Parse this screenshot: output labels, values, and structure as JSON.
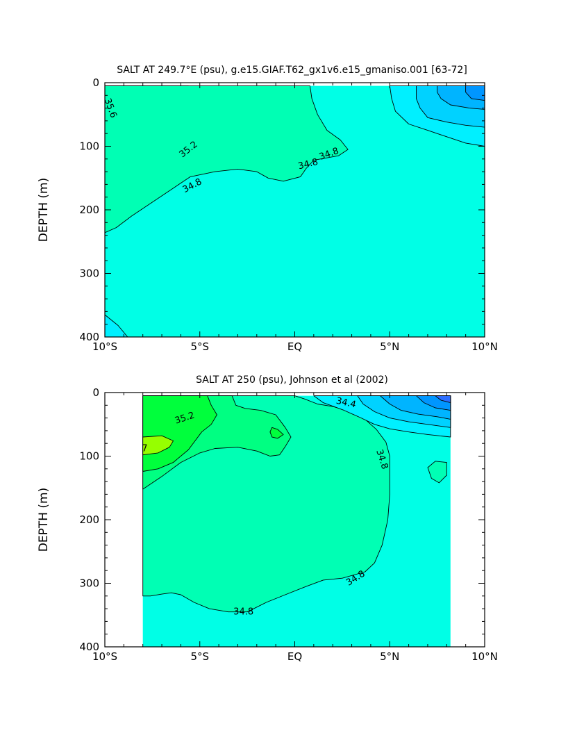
{
  "chart_data": [
    {
      "type": "contour",
      "title": "SALT AT 249.7°E (psu), g.e15.GIAF.T62_gx1v6.e15_gmaniso.001 ​[63-72​]",
      "ylabel": "DEPTH (m)",
      "xlabel": "",
      "xlim": [
        -10,
        10
      ],
      "ylim": [
        400,
        0
      ],
      "x_ticks": [
        -10,
        -5,
        0,
        5,
        10
      ],
      "x_tick_labels": [
        "10°S",
        "5°S",
        "EQ",
        "5°N",
        "10°N"
      ],
      "y_ticks": [
        0,
        100,
        200,
        300,
        400
      ],
      "y_tick_labels": [
        "0",
        "100",
        "200",
        "300",
        "400"
      ],
      "data_extent": {
        "x": [
          -10,
          10
        ],
        "depth": [
          5,
          400
        ]
      },
      "background_color": "#00ffe6",
      "contour_labels": [
        {
          "text": "35.6",
          "x": -9.7,
          "depth": 40,
          "angle": 70
        },
        {
          "text": "35.2",
          "x": -5.6,
          "depth": 105,
          "angle": -38
        },
        {
          "text": "34.8",
          "x": -5.4,
          "depth": 162,
          "angle": -28
        },
        {
          "text": "34.8",
          "x": 0.7,
          "depth": 128,
          "angle": -14
        },
        {
          "text": "34.8",
          "x": 1.8,
          "depth": 112,
          "angle": -20
        }
      ],
      "regions": [
        {
          "value": 35.8,
          "color": "#ffff00",
          "outline": [
            [
              -10,
              70
            ],
            [
              -9.6,
              80
            ],
            [
              -9.2,
              92
            ],
            [
              -9.0,
              105
            ],
            [
              -9.3,
              118
            ],
            [
              -9.8,
              126
            ],
            [
              -10,
              128
            ]
          ]
        },
        {
          "value": 35.6,
          "color": "#96ff00",
          "outline": [
            [
              -10,
              5
            ],
            [
              -9,
              5
            ],
            [
              -8.9,
              25
            ],
            [
              -8.7,
              45
            ],
            [
              -8.4,
              65
            ],
            [
              -8.2,
              85
            ],
            [
              -8.2,
              105
            ],
            [
              -8.5,
              125
            ],
            [
              -9.0,
              138
            ],
            [
              -9.6,
              146
            ],
            [
              -10,
              148
            ]
          ]
        },
        {
          "value": 35.4,
          "color": "#00ff3c",
          "outline": [
            [
              -10,
              5
            ],
            [
              -7.9,
              5
            ],
            [
              -7.8,
              25
            ],
            [
              -7.5,
              48
            ],
            [
              -6.9,
              68
            ],
            [
              -6.2,
              82
            ],
            [
              -4.6,
              76
            ],
            [
              -3.3,
              64
            ],
            [
              -2.3,
              58
            ],
            [
              -1.2,
              68
            ],
            [
              -0.7,
              85
            ],
            [
              -1.2,
              95
            ],
            [
              -2.5,
              97
            ],
            [
              -4,
              100
            ],
            [
              -5.2,
              110
            ],
            [
              -6.5,
              125
            ],
            [
              -7.8,
              140
            ],
            [
              -8.8,
              150
            ],
            [
              -10,
              160
            ]
          ]
        },
        {
          "value": 35.2,
          "color": "#00ff82",
          "outline": [
            [
              -10,
              5
            ],
            [
              -5.6,
              5
            ],
            [
              -5.6,
              25
            ],
            [
              -5.2,
              40
            ],
            [
              -4.5,
              50
            ],
            [
              -3.2,
              55
            ],
            [
              -1.8,
              57
            ],
            [
              -1.0,
              62
            ],
            [
              -0.6,
              70
            ],
            [
              -0.6,
              85
            ],
            [
              -1.2,
              93
            ],
            [
              -2.3,
              95
            ],
            [
              -3.5,
              96
            ],
            [
              -4.5,
              100
            ],
            [
              -5.5,
              110
            ],
            [
              -6.5,
              124
            ],
            [
              -7.5,
              138
            ],
            [
              -8.8,
              150
            ],
            [
              -9.5,
              158
            ],
            [
              -10,
              162
            ]
          ]
        },
        {
          "value": 35.0,
          "color": "#00ffb4",
          "outline": [
            [
              -10,
              5
            ],
            [
              0.8,
              5
            ],
            [
              0.9,
              25
            ],
            [
              1.2,
              50
            ],
            [
              1.7,
              75
            ],
            [
              2.4,
              90
            ],
            [
              2.8,
              105
            ],
            [
              2.3,
              115
            ],
            [
              1.0,
              122
            ],
            [
              0.6,
              135
            ],
            [
              0.3,
              148
            ],
            [
              -0.6,
              155
            ],
            [
              -1.4,
              150
            ],
            [
              -2,
              140
            ],
            [
              -3,
              136
            ],
            [
              -4.2,
              140
            ],
            [
              -5.5,
              148
            ],
            [
              -6.5,
              168
            ],
            [
              -7.6,
              190
            ],
            [
              -8.6,
              210
            ],
            [
              -9.4,
              228
            ],
            [
              -10,
              236
            ]
          ]
        },
        {
          "value": 34.4,
          "color": "#00f0ff",
          "outline": [
            [
              5,
              5
            ],
            [
              10,
              5
            ],
            [
              10,
              100
            ],
            [
              9,
              95
            ],
            [
              8,
              85
            ],
            [
              7,
              75
            ],
            [
              6,
              65
            ],
            [
              5.3,
              45
            ],
            [
              5.1,
              25
            ]
          ]
        },
        {
          "value": 34.2,
          "color": "#00d2ff",
          "outline": [
            [
              6.4,
              5
            ],
            [
              10,
              5
            ],
            [
              10,
              70
            ],
            [
              9,
              67
            ],
            [
              8,
              62
            ],
            [
              7,
              55
            ],
            [
              6.6,
              40
            ],
            [
              6.4,
              25
            ]
          ]
        },
        {
          "value": 34.0,
          "color": "#00b4ff",
          "outline": [
            [
              7.5,
              5
            ],
            [
              10,
              5
            ],
            [
              10,
              42
            ],
            [
              9.2,
              40
            ],
            [
              8.2,
              35
            ],
            [
              7.7,
              25
            ],
            [
              7.5,
              15
            ]
          ]
        },
        {
          "value": 33.8,
          "color": "#0096ff",
          "outline": [
            [
              9.0,
              5
            ],
            [
              10,
              5
            ],
            [
              10,
              28
            ],
            [
              9.3,
              25
            ],
            [
              9.0,
              15
            ]
          ]
        },
        {
          "value": 34.6,
          "color": "#00f0ff",
          "outline": [
            [
              -10,
              365
            ],
            [
              -9.3,
              382
            ],
            [
              -8.8,
              400
            ],
            [
              -10,
              400
            ]
          ]
        }
      ]
    },
    {
      "type": "contour",
      "title": "SALT AT 250 (psu), Johnson et al (2002)",
      "ylabel": "DEPTH (m)",
      "xlabel": "",
      "xlim": [
        -10,
        10
      ],
      "ylim": [
        400,
        0
      ],
      "x_ticks": [
        -10,
        -5,
        0,
        5,
        10
      ],
      "x_tick_labels": [
        "10°S",
        "5°S",
        "EQ",
        "5°N",
        "10°N"
      ],
      "y_ticks": [
        0,
        100,
        200,
        300,
        400
      ],
      "y_tick_labels": [
        "0",
        "100",
        "200",
        "300",
        "400"
      ],
      "data_extent": {
        "x": [
          -8,
          8.2
        ],
        "depth": [
          5,
          400
        ]
      },
      "background_color": "#00ffe6",
      "contour_labels": [
        {
          "text": "35.2",
          "x": -5.8,
          "depth": 40,
          "angle": -18
        },
        {
          "text": "34.4",
          "x": 2.7,
          "depth": 16,
          "angle": 12
        },
        {
          "text": "34.8",
          "x": 4.6,
          "depth": 105,
          "angle": 72
        },
        {
          "text": "34.8",
          "x": 3.2,
          "depth": 292,
          "angle": -32
        },
        {
          "text": "34.8",
          "x": -2.7,
          "depth": 345,
          "angle": 0
        },
        {
          "text": "7",
          "x": -7.9,
          "depth": 88,
          "angle": 0
        }
      ],
      "regions": [
        {
          "value": 34.9,
          "color": "#00ffb4",
          "outline": [
            [
              -8,
              5
            ],
            [
              0,
              5
            ],
            [
              0.5,
              10
            ],
            [
              1.2,
              18
            ],
            [
              2.0,
              22
            ],
            [
              3.0,
              30
            ],
            [
              3.7,
              42
            ],
            [
              4.3,
              58
            ],
            [
              4.8,
              78
            ],
            [
              5.0,
              100
            ],
            [
              5.0,
              130
            ],
            [
              5.0,
              160
            ],
            [
              4.9,
              200
            ],
            [
              4.6,
              240
            ],
            [
              4.2,
              268
            ],
            [
              3.7,
              282
            ],
            [
              2.5,
              292
            ],
            [
              1.5,
              295
            ],
            [
              0.6,
              305
            ],
            [
              -0.5,
              318
            ],
            [
              -1.5,
              330
            ],
            [
              -2.5,
              345
            ],
            [
              -3.5,
              345
            ],
            [
              -4.5,
              340
            ],
            [
              -5.3,
              330
            ],
            [
              -6,
              318
            ],
            [
              -6.5,
              315
            ],
            [
              -7,
              317
            ],
            [
              -7.6,
              320
            ],
            [
              -8,
              320
            ]
          ]
        },
        {
          "value": 35.0,
          "color": "#00ff82",
          "outline": [
            [
              -8,
              5
            ],
            [
              -3.3,
              5
            ],
            [
              -3.1,
              20
            ],
            [
              -2.6,
              25
            ],
            [
              -1.8,
              28
            ],
            [
              -1.0,
              35
            ],
            [
              -0.5,
              55
            ],
            [
              -0.2,
              70
            ],
            [
              -0.5,
              85
            ],
            [
              -0.8,
              98
            ],
            [
              -1.3,
              100
            ],
            [
              -2,
              92
            ],
            [
              -3,
              86
            ],
            [
              -4.2,
              88
            ],
            [
              -5,
              95
            ],
            [
              -6,
              110
            ],
            [
              -7,
              132
            ],
            [
              -8,
              152
            ]
          ]
        },
        {
          "value": 35.2,
          "color": "#00ff3c",
          "outline": [
            [
              -8,
              5
            ],
            [
              -4.6,
              5
            ],
            [
              -4.4,
              20
            ],
            [
              -4.1,
              35
            ],
            [
              -4.4,
              50
            ],
            [
              -4.9,
              62
            ],
            [
              -5.6,
              90
            ],
            [
              -6.4,
              110
            ],
            [
              -7.2,
              120
            ],
            [
              -8,
              124
            ]
          ]
        },
        {
          "value": 35.6,
          "color": "#96ff00",
          "outline": [
            [
              -8,
              70
            ],
            [
              -7.0,
              68
            ],
            [
              -6.4,
              76
            ],
            [
              -6.6,
              86
            ],
            [
              -7.2,
              95
            ],
            [
              -8,
              98
            ]
          ]
        },
        {
          "value": 35.0,
          "color": "#00ff3c",
          "outline": [
            [
              -1.2,
              55
            ],
            [
              -0.9,
              58
            ],
            [
              -0.6,
              66
            ],
            [
              -0.9,
              72
            ],
            [
              -1.2,
              70
            ],
            [
              -1.3,
              62
            ]
          ]
        },
        {
          "value": 34.6,
          "color": "#00f0ff",
          "outline": [
            [
              1.0,
              5
            ],
            [
              8.2,
              5
            ],
            [
              8.2,
              70
            ],
            [
              7,
              66
            ],
            [
              6,
              62
            ],
            [
              5,
              57
            ],
            [
              4.2,
              50
            ],
            [
              3.5,
              40
            ],
            [
              2.6,
              28
            ],
            [
              1.5,
              16
            ]
          ]
        },
        {
          "value": 34.4,
          "color": "#00d2ff",
          "outline": [
            [
              3.3,
              5
            ],
            [
              8.2,
              5
            ],
            [
              8.2,
              55
            ],
            [
              7,
              50
            ],
            [
              6,
              46
            ],
            [
              5,
              40
            ],
            [
              4.2,
              30
            ],
            [
              3.6,
              18
            ]
          ]
        },
        {
          "value": 34.2,
          "color": "#00b4ff",
          "outline": [
            [
              4.5,
              5
            ],
            [
              8.2,
              5
            ],
            [
              8.2,
              42
            ],
            [
              7.5,
              38
            ],
            [
              6.5,
              34
            ],
            [
              5.6,
              28
            ],
            [
              5.0,
              18
            ]
          ]
        },
        {
          "value": 34.0,
          "color": "#0096ff",
          "outline": [
            [
              6.4,
              5
            ],
            [
              8.2,
              5
            ],
            [
              8.2,
              28
            ],
            [
              7.4,
              24
            ],
            [
              6.8,
              16
            ]
          ]
        },
        {
          "value": 33.8,
          "color": "#2d6eff",
          "outline": [
            [
              7.4,
              5
            ],
            [
              8.2,
              5
            ],
            [
              8.2,
              16
            ],
            [
              7.7,
              12
            ]
          ]
        },
        {
          "value": 34.8,
          "color": "#00ffb4",
          "outline": [
            [
              7.0,
              118
            ],
            [
              7.4,
              108
            ],
            [
              8.0,
              110
            ],
            [
              8.0,
              130
            ],
            [
              7.6,
              142
            ],
            [
              7.2,
              135
            ]
          ]
        }
      ]
    }
  ]
}
